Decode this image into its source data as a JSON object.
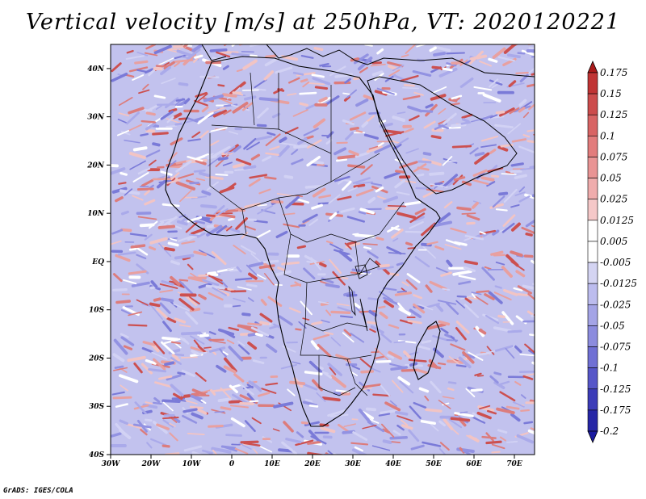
{
  "title": "Vertical velocity [m/s] at 250hPa, VT: 2020120221",
  "credit": "GrADS: IGES/COLA",
  "map": {
    "lon_range": [
      -30,
      75
    ],
    "lat_range": [
      -40,
      45
    ],
    "lat_labels": [
      "40N",
      "30N",
      "20N",
      "10N",
      "EQ",
      "10S",
      "20S",
      "30S",
      "40S"
    ],
    "lat_values": [
      40,
      30,
      20,
      10,
      0,
      -10,
      -20,
      -30,
      -40
    ],
    "lon_labels": [
      "30W",
      "20W",
      "10W",
      "0",
      "10E",
      "20E",
      "30E",
      "40E",
      "50E",
      "60E",
      "70E"
    ],
    "lon_values": [
      -30,
      -20,
      -10,
      0,
      10,
      20,
      30,
      40,
      50,
      60,
      70
    ]
  },
  "colorbar": {
    "levels": [
      "0.175",
      "0.15",
      "0.125",
      "0.1",
      "0.075",
      "0.05",
      "0.025",
      "0.0125",
      "0.005",
      "-0.005",
      "-0.0125",
      "-0.025",
      "-0.05",
      "-0.075",
      "-0.1",
      "-0.125",
      "-0.175",
      "-0.2"
    ],
    "colors": [
      "#aa1a1a",
      "#c03434",
      "#cc4c4c",
      "#d86464",
      "#e27c7c",
      "#e99494",
      "#efacac",
      "#f5c8c8",
      "#ffffff",
      "#ffffff",
      "#d4d4f2",
      "#bcbcee",
      "#a4a4e6",
      "#8c8cde",
      "#7070d4",
      "#5656c8",
      "#3c3cb8",
      "#2626a6",
      "#1a1aa0"
    ]
  }
}
